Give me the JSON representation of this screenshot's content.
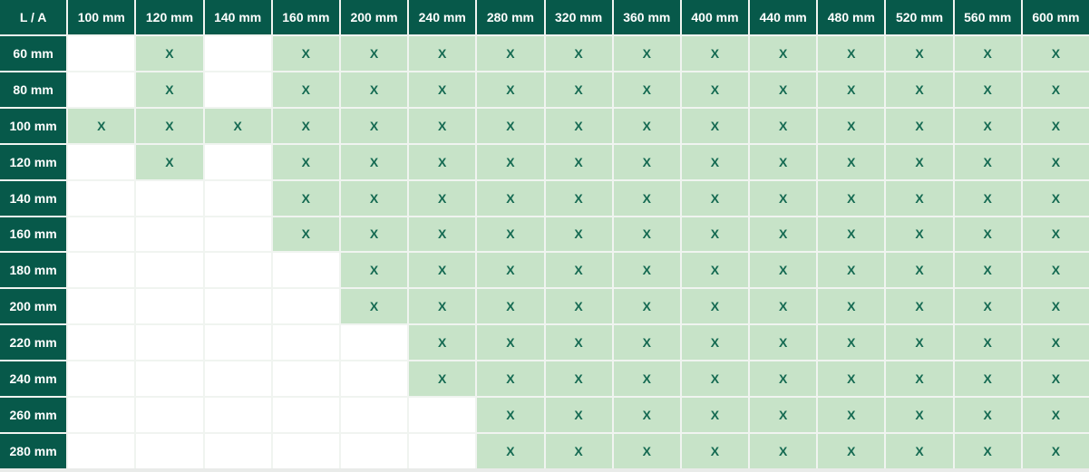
{
  "table": {
    "corner_label": "L / A",
    "mark": "X",
    "column_headers": [
      "100 mm",
      "120 mm",
      "140 mm",
      "160 mm",
      "200 mm",
      "240 mm",
      "280 mm",
      "320 mm",
      "360 mm",
      "400 mm",
      "440 mm",
      "480 mm",
      "520 mm",
      "560 mm",
      "600 mm"
    ],
    "rows": [
      {
        "label": "60 mm",
        "cells": [
          "",
          "X",
          "",
          "X",
          "X",
          "X",
          "X",
          "X",
          "X",
          "X",
          "X",
          "X",
          "X",
          "X",
          "X"
        ]
      },
      {
        "label": "80 mm",
        "cells": [
          "",
          "X",
          "",
          "X",
          "X",
          "X",
          "X",
          "X",
          "X",
          "X",
          "X",
          "X",
          "X",
          "X",
          "X"
        ]
      },
      {
        "label": "100 mm",
        "cells": [
          "X",
          "X",
          "X",
          "X",
          "X",
          "X",
          "X",
          "X",
          "X",
          "X",
          "X",
          "X",
          "X",
          "X",
          "X"
        ]
      },
      {
        "label": "120 mm",
        "cells": [
          "",
          "X",
          "",
          "X",
          "X",
          "X",
          "X",
          "X",
          "X",
          "X",
          "X",
          "X",
          "X",
          "X",
          "X"
        ]
      },
      {
        "label": "140 mm",
        "cells": [
          "",
          "",
          "",
          "X",
          "X",
          "X",
          "X",
          "X",
          "X",
          "X",
          "X",
          "X",
          "X",
          "X",
          "X"
        ]
      },
      {
        "label": "160 mm",
        "cells": [
          "",
          "",
          "",
          "X",
          "X",
          "X",
          "X",
          "X",
          "X",
          "X",
          "X",
          "X",
          "X",
          "X",
          "X"
        ]
      },
      {
        "label": "180 mm",
        "cells": [
          "",
          "",
          "",
          "",
          "X",
          "X",
          "X",
          "X",
          "X",
          "X",
          "X",
          "X",
          "X",
          "X",
          "X"
        ]
      },
      {
        "label": "200 mm",
        "cells": [
          "",
          "",
          "",
          "",
          "X",
          "X",
          "X",
          "X",
          "X",
          "X",
          "X",
          "X",
          "X",
          "X",
          "X"
        ]
      },
      {
        "label": "220 mm",
        "cells": [
          "",
          "",
          "",
          "",
          "",
          "X",
          "X",
          "X",
          "X",
          "X",
          "X",
          "X",
          "X",
          "X",
          "X"
        ]
      },
      {
        "label": "240 mm",
        "cells": [
          "",
          "",
          "",
          "",
          "",
          "X",
          "X",
          "X",
          "X",
          "X",
          "X",
          "X",
          "X",
          "X",
          "X"
        ]
      },
      {
        "label": "260 mm",
        "cells": [
          "",
          "",
          "",
          "",
          "",
          "",
          "X",
          "X",
          "X",
          "X",
          "X",
          "X",
          "X",
          "X",
          "X"
        ]
      },
      {
        "label": "280 mm",
        "cells": [
          "",
          "",
          "",
          "",
          "",
          "",
          "X",
          "X",
          "X",
          "X",
          "X",
          "X",
          "X",
          "X",
          "X"
        ]
      }
    ]
  },
  "colors": {
    "header_bg": "#07594a",
    "header_text": "#ffffff",
    "available_bg": "#c7e3c8",
    "available_text": "#156a52",
    "empty_bg": "#ffffff",
    "grid_line": "#f0f4f0",
    "bottom_strip": "#e9ebe9"
  }
}
